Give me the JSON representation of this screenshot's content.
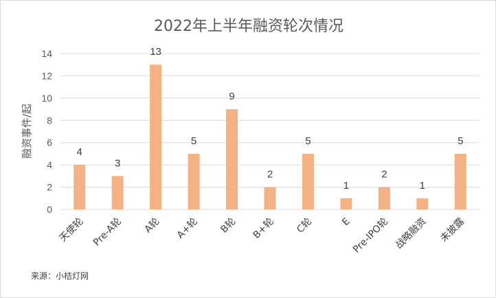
{
  "chart_data": {
    "type": "bar",
    "title": "2022年上半年融资轮次情况",
    "xlabel": "",
    "ylabel": "融资事件/起",
    "categories": [
      "天使轮",
      "Pre-A轮",
      "A轮",
      "A+轮",
      "B轮",
      "B+轮",
      "C轮",
      "E",
      "Pre-IPO轮",
      "战略融资",
      "未披露"
    ],
    "values": [
      4,
      3,
      13,
      5,
      9,
      2,
      5,
      1,
      2,
      1,
      5
    ],
    "ylim": [
      0,
      14
    ],
    "yticks": [
      0,
      2,
      4,
      6,
      8,
      10,
      12,
      14
    ],
    "grid": true,
    "legend": "none",
    "bar_color": "#f4b183",
    "grid_color": "#d9d9d9",
    "source": "来源：小桔灯网"
  }
}
